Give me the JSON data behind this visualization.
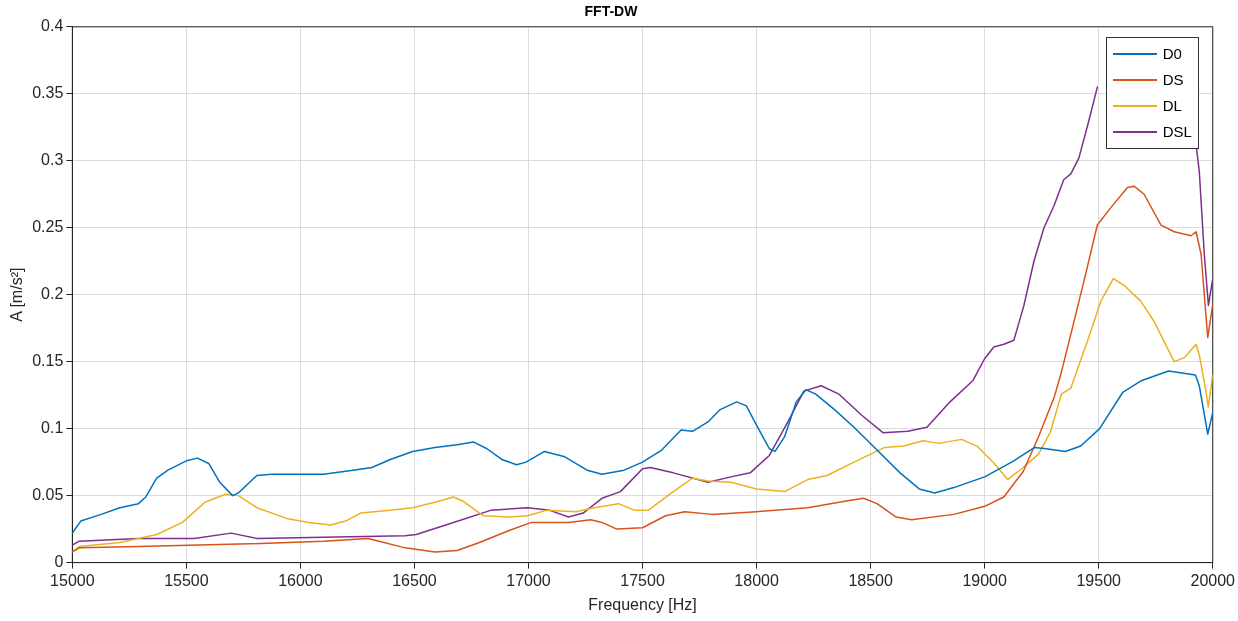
{
  "chart_data": {
    "type": "line",
    "title": "FFT-DW",
    "xlabel": "Frequency [Hz]",
    "ylabel": "A [m/s²]",
    "xlim": [
      15000,
      20000
    ],
    "xticks": [
      15000,
      15500,
      16000,
      16500,
      17000,
      17500,
      18000,
      18500,
      19000,
      19500,
      20000
    ],
    "ylim": [
      0,
      0.4
    ],
    "yticks": [
      0,
      0.05,
      0.1,
      0.15,
      0.2,
      0.25,
      0.3,
      0.35,
      0.4
    ],
    "grid": true,
    "legend": "top right",
    "marker": "none",
    "line_style": "solid",
    "series": [
      {
        "name": "D0",
        "color": "#0072bd",
        "x": [
          15000,
          15037,
          15127,
          15208,
          15290,
          15322,
          15370,
          15419,
          15500,
          15549,
          15598,
          15646,
          15703,
          15728,
          15809,
          15874,
          16000,
          16101,
          16231,
          16313,
          16394,
          16492,
          16590,
          16687,
          16760,
          16818,
          16883,
          16948,
          16989,
          17070,
          17159,
          17257,
          17322,
          17419,
          17500,
          17584,
          17669,
          17719,
          17787,
          17838,
          17913,
          17955,
          18005,
          18056,
          18081,
          18123,
          18174,
          18216,
          18258,
          18343,
          18427,
          18528,
          18629,
          18713,
          18781,
          18865,
          19000,
          19118,
          19219,
          19270,
          19354,
          19421,
          19504,
          19605,
          19689,
          19806,
          19924,
          19941,
          19978,
          20000
        ],
        "values": [
          0.022,
          0.031,
          0.036,
          0.041,
          0.044,
          0.049,
          0.063,
          0.069,
          0.076,
          0.078,
          0.074,
          0.06,
          0.05,
          0.052,
          0.065,
          0.066,
          0.066,
          0.066,
          0.069,
          0.071,
          0.077,
          0.083,
          0.086,
          0.088,
          0.09,
          0.085,
          0.077,
          0.073,
          0.075,
          0.083,
          0.079,
          0.069,
          0.066,
          0.069,
          0.075,
          0.084,
          0.099,
          0.098,
          0.105,
          0.114,
          0.12,
          0.117,
          0.101,
          0.085,
          0.083,
          0.094,
          0.12,
          0.129,
          0.126,
          0.114,
          0.101,
          0.084,
          0.067,
          0.055,
          0.052,
          0.056,
          0.064,
          0.075,
          0.086,
          0.085,
          0.083,
          0.087,
          0.1,
          0.127,
          0.136,
          0.143,
          0.14,
          0.132,
          0.096,
          0.112
        ]
      },
      {
        "name": "DS",
        "color": "#d95319",
        "x": [
          15000,
          15030,
          15290,
          15777,
          16101,
          16296,
          16345,
          16459,
          16590,
          16687,
          16785,
          16915,
          17013,
          17175,
          17273,
          17322,
          17387,
          17500,
          17601,
          17685,
          17803,
          18000,
          18224,
          18393,
          18469,
          18528,
          18612,
          18680,
          18865,
          19000,
          19084,
          19169,
          19236,
          19304,
          19333,
          19377,
          19435,
          19494,
          19553,
          19626,
          19655,
          19699,
          19773,
          19831,
          19905,
          19927,
          19949,
          19978,
          20000
        ],
        "values": [
          0.008,
          0.011,
          0.012,
          0.014,
          0.016,
          0.018,
          0.016,
          0.011,
          0.008,
          0.009,
          0.015,
          0.024,
          0.03,
          0.03,
          0.032,
          0.03,
          0.025,
          0.026,
          0.035,
          0.038,
          0.036,
          0.038,
          0.041,
          0.046,
          0.048,
          0.044,
          0.034,
          0.032,
          0.036,
          0.042,
          0.049,
          0.068,
          0.094,
          0.123,
          0.14,
          0.17,
          0.21,
          0.252,
          0.265,
          0.28,
          0.281,
          0.275,
          0.252,
          0.247,
          0.244,
          0.247,
          0.23,
          0.168,
          0.193
        ]
      },
      {
        "name": "DL",
        "color": "#edb120",
        "x": [
          15000,
          15030,
          15208,
          15370,
          15483,
          15581,
          15671,
          15728,
          15809,
          15939,
          16036,
          16133,
          16198,
          16264,
          16394,
          16492,
          16590,
          16671,
          16711,
          16801,
          16915,
          16996,
          17078,
          17208,
          17289,
          17395,
          17466,
          17525,
          17618,
          17719,
          17787,
          17888,
          18000,
          18123,
          18224,
          18309,
          18427,
          18562,
          18646,
          18730,
          18798,
          18899,
          18966,
          19042,
          19101,
          19169,
          19236,
          19287,
          19337,
          19377,
          19450,
          19509,
          19564,
          19611,
          19685,
          19743,
          19787,
          19831,
          19875,
          19927,
          19941,
          19971,
          19980,
          20000
        ],
        "values": [
          0.008,
          0.012,
          0.015,
          0.021,
          0.03,
          0.045,
          0.051,
          0.05,
          0.041,
          0.033,
          0.03,
          0.028,
          0.031,
          0.037,
          0.039,
          0.041,
          0.045,
          0.049,
          0.046,
          0.035,
          0.034,
          0.035,
          0.039,
          0.038,
          0.041,
          0.044,
          0.039,
          0.039,
          0.051,
          0.063,
          0.061,
          0.06,
          0.055,
          0.053,
          0.062,
          0.065,
          0.075,
          0.086,
          0.087,
          0.091,
          0.089,
          0.092,
          0.087,
          0.074,
          0.062,
          0.071,
          0.081,
          0.097,
          0.126,
          0.13,
          0.165,
          0.195,
          0.212,
          0.207,
          0.195,
          0.18,
          0.165,
          0.15,
          0.153,
          0.163,
          0.155,
          0.127,
          0.116,
          0.14
        ]
      },
      {
        "name": "DSL",
        "color": "#7e2f8e",
        "x": [
          15000,
          15030,
          15290,
          15534,
          15696,
          15809,
          16101,
          16459,
          16508,
          16671,
          16834,
          16996,
          17094,
          17175,
          17240,
          17322,
          17403,
          17500,
          17534,
          17635,
          17787,
          17888,
          17972,
          18056,
          18140,
          18207,
          18283,
          18359,
          18461,
          18554,
          18663,
          18747,
          18848,
          18949,
          18999,
          19040,
          19084,
          19128,
          19172,
          19216,
          19260,
          19303,
          19347,
          19377,
          19413,
          19457,
          19494,
          19700,
          19929,
          19941,
          19963,
          19981,
          20000
        ],
        "values": [
          0.013,
          0.016,
          0.018,
          0.018,
          0.022,
          0.018,
          0.019,
          0.02,
          0.021,
          0.03,
          0.039,
          0.041,
          0.039,
          0.034,
          0.037,
          0.048,
          0.053,
          0.07,
          0.071,
          0.067,
          0.06,
          0.064,
          0.067,
          0.08,
          0.106,
          0.128,
          0.132,
          0.126,
          0.11,
          0.097,
          0.098,
          0.101,
          0.12,
          0.136,
          0.152,
          0.161,
          0.163,
          0.166,
          0.192,
          0.225,
          0.25,
          0.266,
          0.286,
          0.29,
          0.302,
          0.33,
          0.355,
          null,
          0.309,
          0.292,
          0.23,
          0.192,
          0.212
        ]
      }
    ]
  }
}
